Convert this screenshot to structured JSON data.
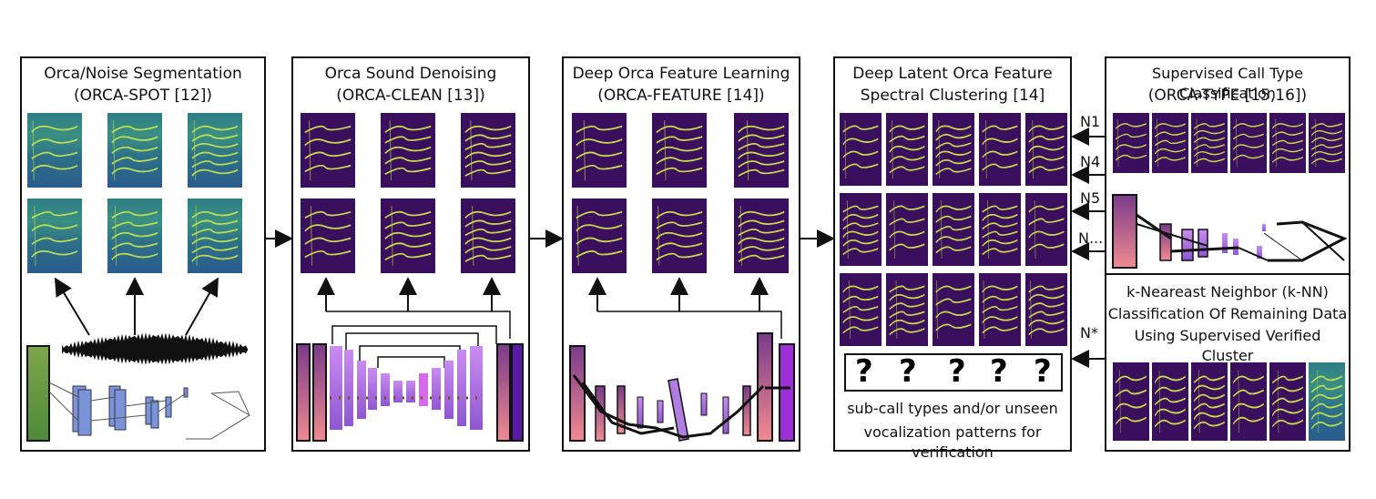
{
  "panels": {
    "p1": {
      "title1": "Orca/Noise Segmentation",
      "title2": "(ORCA-SPOT [12])"
    },
    "p2": {
      "title1": "Orca Sound Denoising",
      "title2": "(ORCA-CLEAN [13])"
    },
    "p3": {
      "title1": "Deep Orca Feature Learning",
      "title2": "(ORCA-FEATURE [14])"
    },
    "p4": {
      "title1": "Deep Latent Orca Feature",
      "title2": "Spectral Clustering [14]",
      "question_marks": [
        "?",
        "?",
        "?",
        "?",
        "?"
      ],
      "caption1": "sub-call types and/or unseen",
      "caption2": "vocalization patterns for verification"
    },
    "p5": {
      "title1": "Supervised Call Type Classification",
      "title2": "(ORCA-TYPE [15,16])"
    },
    "p6": {
      "title1": "k-Neareast Neighbor (k-NN)",
      "title2": "Classification Of Remaining Data",
      "title3": "Using Supervised Verified Cluster"
    }
  },
  "arrow_labels": [
    "N1",
    "N4",
    "N5",
    "N...",
    "N*"
  ],
  "colors": {
    "green_spec": "#2f7d86",
    "purple_spec": "#3a0f5e",
    "trace_yellow": "#d8f04a",
    "cnn_blue": "#7b93d8",
    "cnn_purple": "#b27de0",
    "cnn_pink": "#e08aa8"
  }
}
